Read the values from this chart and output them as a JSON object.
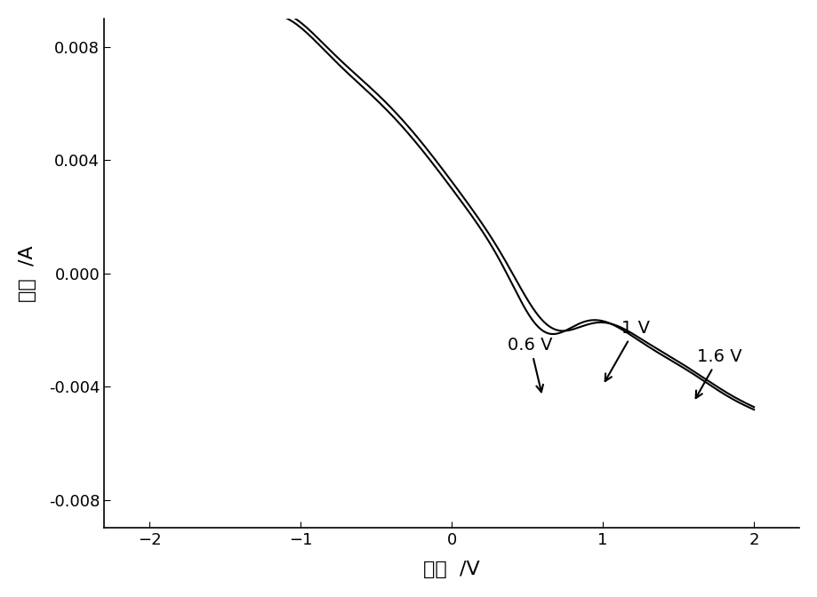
{
  "title": "",
  "xlabel": "电压  /V",
  "ylabel": "电流  /A",
  "xlim": [
    -2.2,
    2.2
  ],
  "ylim": [
    -0.008,
    0.008
  ],
  "xticks": [
    -2,
    -1,
    0,
    1,
    2
  ],
  "yticks": [
    -0.008,
    -0.004,
    0.0,
    0.004,
    0.008
  ],
  "line_color": "#000000",
  "background_color": "#ffffff",
  "annotation_fontsize": 14
}
